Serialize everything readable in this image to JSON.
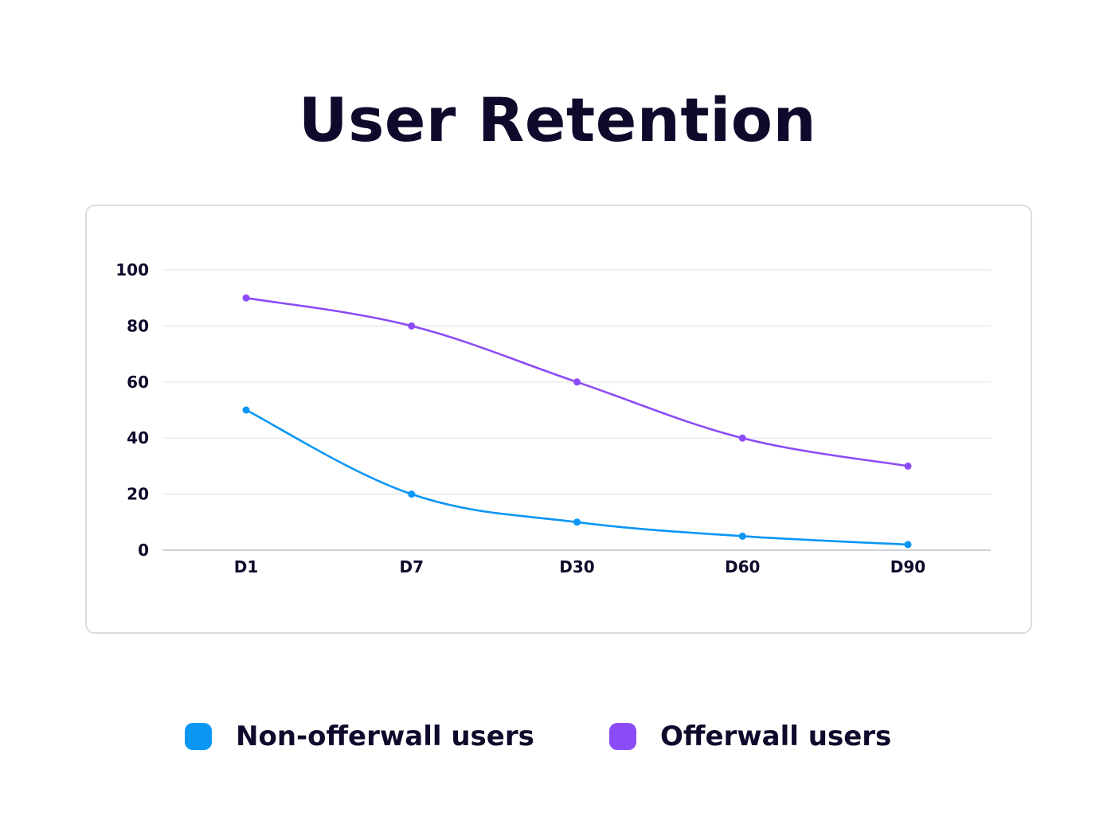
{
  "chart_data": {
    "type": "line",
    "title": "User Retention",
    "categories": [
      "D1",
      "D7",
      "D30",
      "D60",
      "D90"
    ],
    "ylim": [
      0,
      100
    ],
    "yticks": [
      0,
      20,
      40,
      60,
      80,
      100
    ],
    "grid": true,
    "legend_position": "bottom",
    "series": [
      {
        "name": "Non-offerwall users",
        "values": [
          50,
          20,
          10,
          5,
          2
        ],
        "color": "#0a96f5"
      },
      {
        "name": "Offerwall users",
        "values": [
          90,
          80,
          60,
          40,
          30
        ],
        "color": "#8b4cf7"
      }
    ]
  }
}
